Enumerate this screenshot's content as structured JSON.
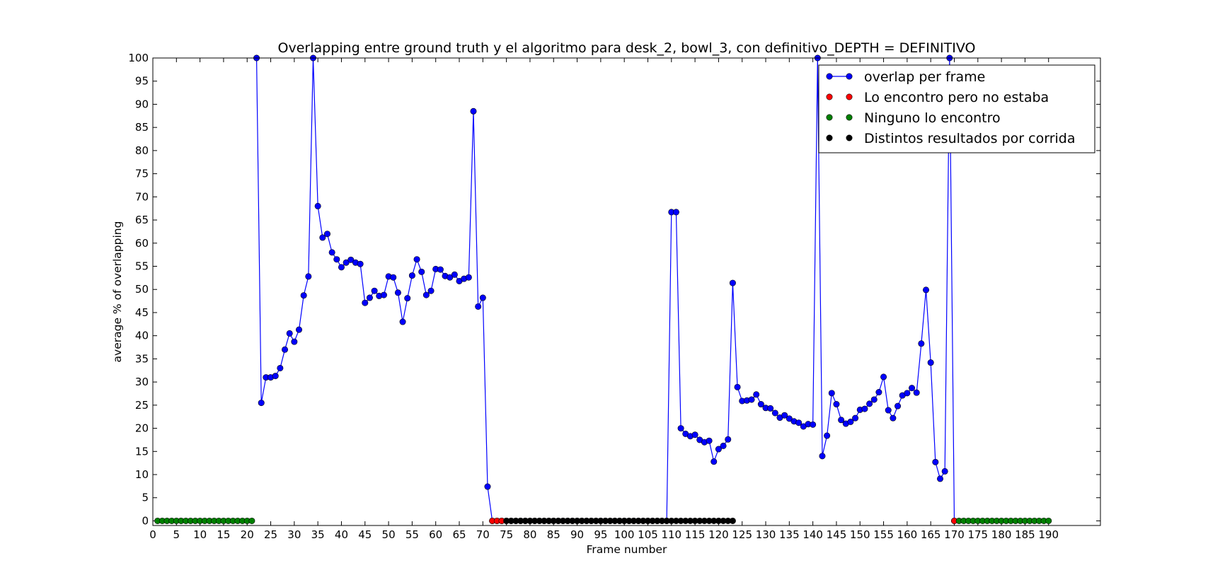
{
  "chart_data": {
    "type": "line",
    "title": "Overlapping entre ground truth y el algoritmo para desk_2, bowl_3, con definitivo_DEPTH = DEFINITIVO",
    "xlabel": "Frame number",
    "ylabel": "average % of overlapping",
    "xlim": [
      0,
      201
    ],
    "ylim": [
      -1,
      100
    ],
    "x_ticks": [
      0,
      5,
      10,
      15,
      20,
      25,
      30,
      35,
      40,
      45,
      50,
      55,
      60,
      65,
      70,
      75,
      80,
      85,
      90,
      95,
      100,
      105,
      110,
      115,
      120,
      125,
      130,
      135,
      140,
      145,
      150,
      155,
      160,
      165,
      170,
      175,
      180,
      185,
      190
    ],
    "y_ticks": [
      0,
      5,
      10,
      15,
      20,
      25,
      30,
      35,
      40,
      45,
      50,
      55,
      60,
      65,
      70,
      75,
      80,
      85,
      90,
      95,
      100
    ],
    "grid": false,
    "legend_position": "top-right",
    "series": [
      {
        "name": "overlap per frame",
        "color": "#0000ff",
        "style": "line-marker",
        "x": [
          22,
          23,
          24,
          25,
          26,
          27,
          28,
          29,
          30,
          31,
          32,
          33,
          34,
          35,
          36,
          37,
          38,
          39,
          40,
          41,
          42,
          43,
          44,
          45,
          46,
          47,
          48,
          49,
          50,
          51,
          52,
          53,
          54,
          55,
          56,
          57,
          58,
          59,
          60,
          61,
          62,
          63,
          64,
          65,
          66,
          67,
          68,
          69,
          70,
          71,
          72,
          73,
          74,
          75,
          76,
          77,
          78,
          79,
          80,
          81,
          82,
          83,
          84,
          85,
          86,
          87,
          88,
          89,
          90,
          91,
          92,
          93,
          94,
          95,
          96,
          97,
          98,
          99,
          100,
          101,
          102,
          103,
          104,
          105,
          106,
          107,
          108,
          109,
          110,
          111,
          112,
          113,
          114,
          115,
          116,
          117,
          118,
          119,
          120,
          121,
          122,
          123,
          124,
          125,
          126,
          127,
          128,
          129,
          130,
          131,
          132,
          133,
          134,
          135,
          136,
          137,
          138,
          139,
          140,
          141,
          142,
          143,
          144,
          145,
          146,
          147,
          148,
          149,
          150,
          151,
          152,
          153,
          154,
          155,
          156,
          157,
          158,
          159,
          160,
          161,
          162,
          163,
          164,
          165,
          166,
          167,
          168,
          169,
          170
        ],
        "y": [
          100,
          25.5,
          31,
          31,
          31.3,
          33,
          37,
          40.5,
          38.7,
          41.3,
          48.7,
          52.8,
          100,
          68,
          61.2,
          62,
          58,
          56.5,
          54.8,
          55.8,
          56.4,
          55.8,
          55.5,
          47.1,
          48.2,
          49.7,
          48.6,
          48.8,
          52.8,
          52.6,
          49.3,
          43,
          48.1,
          53,
          56.5,
          53.8,
          48.8,
          49.7,
          54.4,
          54.3,
          52.9,
          52.6,
          53.2,
          51.8,
          52.3,
          52.6,
          88.5,
          46.3,
          48.2,
          7.4,
          0,
          0,
          0,
          0,
          0,
          0,
          0,
          0,
          0,
          0,
          0,
          0,
          0,
          0,
          0,
          0,
          0,
          0,
          0,
          0,
          0,
          0,
          0,
          0,
          0,
          0,
          0,
          0,
          0,
          0,
          0,
          0,
          0,
          0,
          0,
          0,
          0,
          0,
          66.7,
          66.7,
          20,
          18.8,
          18.3,
          18.6,
          17.5,
          17,
          17.3,
          12.8,
          15.5,
          16.2,
          17.6,
          51.4,
          28.9,
          25.9,
          26,
          26.2,
          27.3,
          25.2,
          24.4,
          24.3,
          23.3,
          22.3,
          22.8,
          22.1,
          21.5,
          21.2,
          20.4,
          20.9,
          20.8,
          100,
          14,
          18.4,
          27.6,
          25.2,
          21.8,
          21,
          21.4,
          22.2,
          24,
          24.2,
          25.3,
          26.2,
          27.8,
          31.1,
          23.9,
          22.2,
          24.8,
          27.1,
          27.6,
          28.7,
          27.7,
          38.3,
          49.9,
          34.2,
          12.7,
          9.1,
          10.7,
          100,
          0
        ]
      },
      {
        "name": "Lo encontro pero no estaba",
        "color": "#ff0000",
        "style": "marker",
        "x": [
          72,
          73,
          74,
          170
        ],
        "y": [
          0,
          0,
          0,
          0
        ]
      },
      {
        "name": "Ninguno lo encontro",
        "color": "#008000",
        "style": "marker",
        "x": [
          1,
          2,
          3,
          4,
          5,
          6,
          7,
          8,
          9,
          10,
          11,
          12,
          13,
          14,
          15,
          16,
          17,
          18,
          19,
          20,
          21,
          171,
          172,
          173,
          174,
          175,
          176,
          177,
          178,
          179,
          180,
          181,
          182,
          183,
          184,
          185,
          186,
          187,
          188,
          189,
          190
        ],
        "y": [
          0,
          0,
          0,
          0,
          0,
          0,
          0,
          0,
          0,
          0,
          0,
          0,
          0,
          0,
          0,
          0,
          0,
          0,
          0,
          0,
          0,
          0,
          0,
          0,
          0,
          0,
          0,
          0,
          0,
          0,
          0,
          0,
          0,
          0,
          0,
          0,
          0,
          0,
          0,
          0,
          0
        ]
      },
      {
        "name": "Distintos resultados por corrida",
        "color": "#000000",
        "style": "marker",
        "x": [
          75,
          76,
          77,
          78,
          79,
          80,
          81,
          82,
          83,
          84,
          85,
          86,
          87,
          88,
          89,
          90,
          91,
          92,
          93,
          94,
          95,
          96,
          97,
          98,
          99,
          100,
          101,
          102,
          103,
          104,
          105,
          106,
          107,
          108,
          109,
          110,
          111,
          112,
          113,
          114,
          115,
          116,
          117,
          118,
          119,
          120,
          121,
          122,
          123
        ],
        "y": [
          0,
          0,
          0,
          0,
          0,
          0,
          0,
          0,
          0,
          0,
          0,
          0,
          0,
          0,
          0,
          0,
          0,
          0,
          0,
          0,
          0,
          0,
          0,
          0,
          0,
          0,
          0,
          0,
          0,
          0,
          0,
          0,
          0,
          0,
          0,
          0,
          0,
          0,
          0,
          0,
          0,
          0,
          0,
          0,
          0,
          0,
          0,
          0,
          0
        ]
      }
    ]
  }
}
